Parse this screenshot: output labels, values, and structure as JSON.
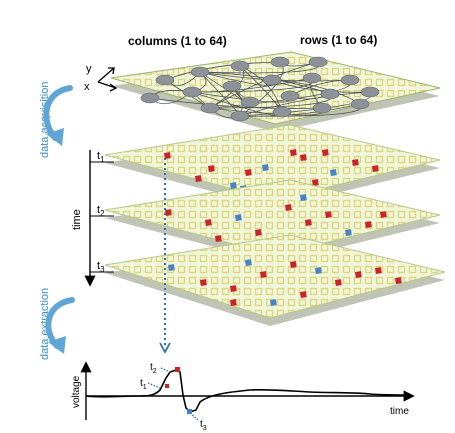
{
  "header": {
    "columns_label": "columns (1 to 64)",
    "rows_label": "rows (1 to 64)"
  },
  "axes": {
    "y_label": "y",
    "x_label": "x"
  },
  "side": {
    "acquisition_label": "data acquisition",
    "extraction_label": "data extraction"
  },
  "timeline": {
    "label": "time",
    "t1": "t",
    "t2": "t",
    "t3": "t",
    "sub1": "1",
    "sub2": "2",
    "sub3": "3"
  },
  "trace": {
    "voltage_label": "voltage",
    "time_label": "time",
    "t_letter": "t",
    "t1_sub": "1",
    "t2_sub": "2",
    "t3_sub": "3"
  },
  "colors": {
    "grid_fill": "#e8f3d2",
    "cell_outline": "#e3d87a",
    "red": "#c8242a",
    "blue": "#4a82c6",
    "arrow_blue": "#5fa6d6",
    "label_blue": "#3a8fc4",
    "dot_line": "#2f6fb5"
  }
}
